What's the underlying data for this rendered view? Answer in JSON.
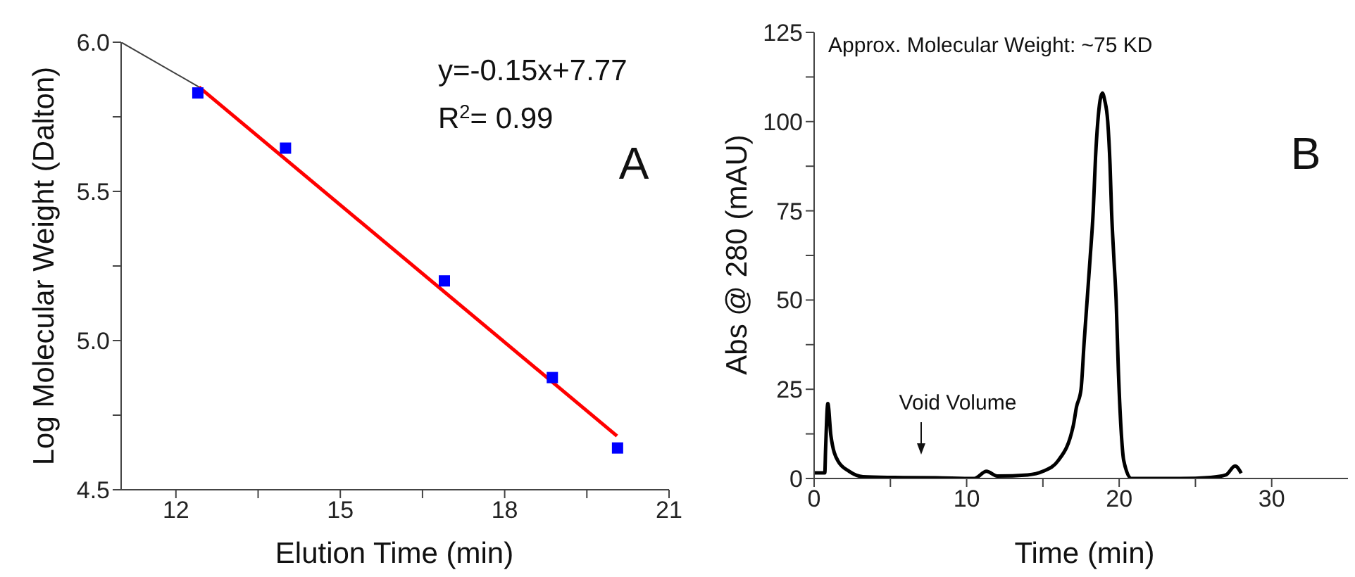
{
  "chart_data": [
    {
      "type": "scatter",
      "xlabel": "Elution Time (min)",
      "ylabel": "Log Molecular Weight (Dalton)",
      "xlim": [
        11,
        21
      ],
      "xticks": [
        12,
        {
          "value": 13.5,
          "label": null
        },
        15,
        {
          "value": 16.5,
          "label": null
        },
        18,
        {
          "value": 19.5,
          "label": null
        },
        21
      ],
      "ylim": [
        4.5,
        6.0
      ],
      "yticks": [
        4.5,
        {
          "value": 4.75,
          "label": null
        },
        {
          "value": 5,
          "label": "5.0"
        },
        {
          "value": 5.25,
          "label": null
        },
        5.5,
        {
          "value": 5.75,
          "label": null
        },
        {
          "value": 6,
          "label": "6.0"
        }
      ],
      "series": [
        {
          "type": "line",
          "color": "#404040",
          "marker": "none",
          "x": [
            11,
            12.42
          ],
          "values": [
            6.0,
            5.85
          ]
        },
        {
          "type": "line",
          "color": "#ff0000",
          "marker": "none",
          "x": [
            12.42,
            20.05
          ],
          "values": [
            5.85,
            4.68
          ]
        },
        {
          "color": "#0000ff",
          "marker": "square",
          "x": [
            12.4,
            14.0,
            16.9,
            18.87,
            20.06
          ],
          "values": [
            5.83,
            5.645,
            5.2,
            4.876,
            4.64
          ]
        }
      ],
      "annotations": [
        "y=-0.15x+7.77",
        "R$^{2}$= 0.99",
        "A"
      ]
    },
    {
      "type": "line",
      "xlabel": "Time (min)",
      "ylabel": "Abs @ 280 (mAU)",
      "xlim": [
        0,
        35
      ],
      "xticks": [
        0,
        {
          "value": 5,
          "label": null
        },
        10,
        {
          "value": 15,
          "label": null
        },
        20,
        {
          "value": 25,
          "label": null
        },
        30
      ],
      "ylim": [
        0,
        125
      ],
      "yticks": [
        0,
        {
          "value": 12.5,
          "label": null
        },
        25,
        {
          "value": 37.5,
          "label": null
        },
        50,
        {
          "value": 62.5,
          "label": null
        },
        75,
        {
          "value": 87.5,
          "label": null
        },
        100,
        {
          "value": 112.5,
          "label": null
        },
        125
      ],
      "series": [
        {
          "color": "#000000",
          "marker": "none",
          "x": [
            0,
            0.7,
            0.75,
            0.9,
            1.1,
            1.55,
            2.3,
            3.2,
            5,
            8,
            10.5,
            11.3,
            12,
            14,
            15,
            16,
            17,
            17.2,
            17.5,
            17.7,
            17.9,
            18.1,
            18.3,
            18.45,
            18.6,
            18.75,
            18.9,
            19.05,
            19.25,
            19.4,
            19.5,
            19.65,
            19.8,
            19.95,
            20.15,
            20.3,
            20.8,
            24,
            26,
            27,
            27.6,
            28
          ],
          "values": [
            1.6,
            1.6,
            8,
            21,
            12,
            5,
            2,
            0.5,
            0.3,
            0.2,
            0,
            2,
            0.7,
            1,
            2,
            5,
            15,
            20,
            25,
            38,
            50,
            62,
            75,
            90,
            100,
            106,
            108,
            106,
            100,
            88,
            75,
            62,
            50,
            30,
            12,
            5,
            0,
            0,
            0.3,
            1,
            3.5,
            1.5
          ]
        }
      ],
      "annotations": [
        "Approx. Molecular Weight: ~75 KD",
        "B",
        "Void Volume"
      ]
    }
  ]
}
